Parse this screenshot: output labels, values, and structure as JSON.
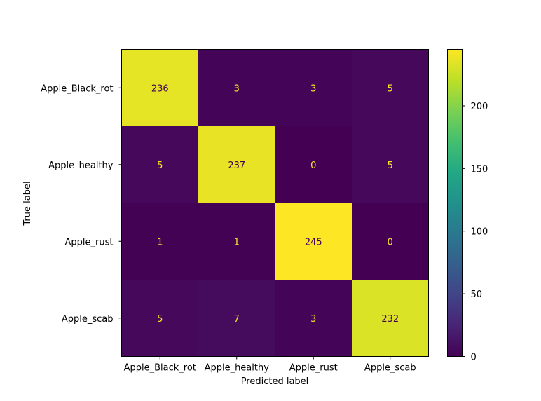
{
  "chart_data": {
    "type": "heatmap",
    "title": "",
    "xlabel": "Predicted label",
    "ylabel": "True label",
    "x_categories": [
      "Apple_Black_rot",
      "Apple_healthy",
      "Apple_rust",
      "Apple_scab"
    ],
    "y_categories": [
      "Apple_Black_rot",
      "Apple_healthy",
      "Apple_rust",
      "Apple_scab"
    ],
    "matrix": [
      [
        236,
        3,
        3,
        5
      ],
      [
        5,
        237,
        0,
        5
      ],
      [
        1,
        1,
        245,
        0
      ],
      [
        5,
        7,
        3,
        232
      ]
    ],
    "colormap": "viridis",
    "colorbar": {
      "range": [
        0,
        245
      ],
      "ticks": [
        0,
        50,
        100,
        150,
        200
      ]
    },
    "text_color_low": "#fde725",
    "text_color_high": "#440154",
    "grid": false
  }
}
